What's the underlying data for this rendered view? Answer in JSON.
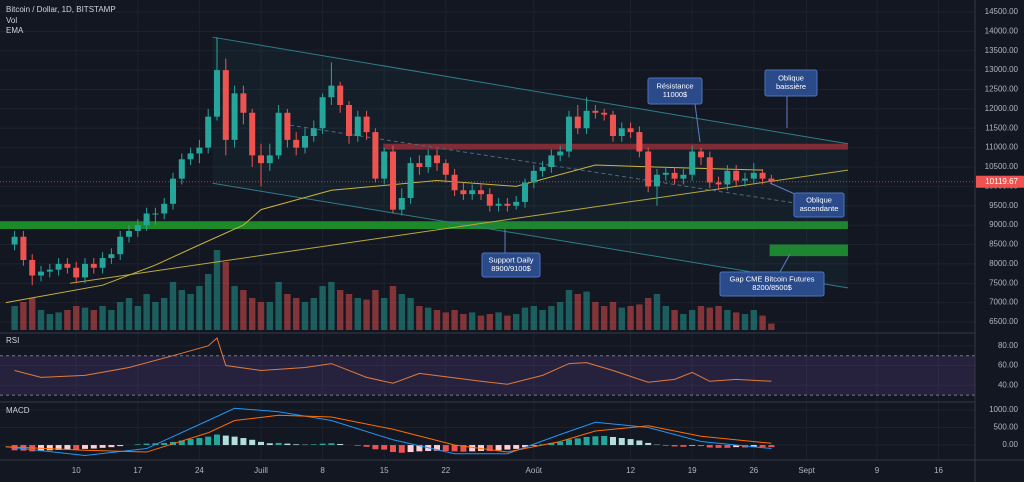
{
  "chart_data": {
    "type": "candlestick",
    "title": "Bitcoin / Dollar, 1D, BITSTAMP",
    "indicator_labels": [
      "Vol",
      "EMA"
    ],
    "x": [
      2,
      3,
      4,
      5,
      6,
      7,
      8,
      9,
      10,
      11,
      12,
      13,
      14,
      15,
      16,
      17,
      18,
      19,
      20,
      21,
      22,
      23,
      24,
      25,
      26,
      27,
      28,
      29,
      30,
      31,
      32,
      33,
      34,
      35,
      36,
      37,
      38,
      39,
      40,
      41,
      42,
      43,
      44,
      45,
      46,
      47,
      48,
      49,
      50,
      51,
      52,
      53,
      54,
      55,
      56,
      57,
      58,
      59,
      60,
      61,
      62,
      63,
      64,
      65,
      66,
      67,
      68,
      69,
      70,
      71,
      72,
      73,
      74,
      75,
      76,
      77,
      78,
      79,
      80,
      81,
      82,
      83,
      84,
      85,
      86,
      87,
      88
    ],
    "open": [
      8500,
      8700,
      8100,
      7700,
      7800,
      7850,
      8000,
      7900,
      7650,
      8000,
      7900,
      8150,
      8250,
      8700,
      8850,
      9000,
      9300,
      9300,
      9550,
      10200,
      10700,
      10850,
      11000,
      11800,
      13000,
      11200,
      12400,
      11900,
      10800,
      10600,
      10800,
      11900,
      11200,
      11000,
      11300,
      11500,
      12300,
      12600,
      12100,
      11300,
      11800,
      11400,
      10200,
      10900,
      9400,
      9700,
      10600,
      10500,
      10800,
      10600,
      10300,
      9900,
      9800,
      9900,
      9800,
      9500,
      9550,
      9500,
      9600,
      10100,
      10400,
      10500,
      10800,
      10900,
      11800,
      11500,
      11950,
      11900,
      11850,
      11300,
      11500,
      11400,
      10900,
      10000,
      10300,
      10350,
      10200,
      10300,
      10900,
      10750,
      10100,
      10050,
      10400,
      10150,
      10200,
      10350,
      10200
    ],
    "high": [
      8850,
      8850,
      8250,
      7950,
      8000,
      8150,
      8150,
      8050,
      8150,
      8150,
      8300,
      8400,
      8850,
      9000,
      9150,
      9450,
      9450,
      9700,
      10350,
      10850,
      11000,
      11200,
      12000,
      13850,
      13300,
      12600,
      12600,
      12000,
      11100,
      11100,
      12100,
      12000,
      11400,
      11500,
      11700,
      12400,
      13200,
      12700,
      12200,
      11950,
      11950,
      11500,
      11000,
      11050,
      9950,
      10750,
      10800,
      10950,
      10950,
      10700,
      10450,
      10100,
      10050,
      10050,
      9950,
      9700,
      9700,
      9750,
      10200,
      10550,
      10650,
      10950,
      11050,
      11950,
      12100,
      12300,
      12100,
      12000,
      11950,
      11650,
      11650,
      11550,
      11000,
      10450,
      10500,
      10500,
      10450,
      11050,
      11000,
      10900,
      10250,
      10550,
      10550,
      10350,
      10600,
      10450,
      10300
    ],
    "low": [
      8350,
      7950,
      7450,
      7550,
      7650,
      7700,
      7750,
      7500,
      7500,
      7750,
      7750,
      8000,
      8100,
      8550,
      8700,
      8850,
      9000,
      9150,
      9400,
      10050,
      10550,
      10600,
      10850,
      11700,
      10800,
      11000,
      11600,
      10500,
      10000,
      10400,
      10700,
      11000,
      10800,
      10850,
      11150,
      11350,
      12100,
      11900,
      11100,
      11150,
      11200,
      10100,
      10050,
      9300,
      9250,
      9550,
      10300,
      10350,
      10400,
      10100,
      9750,
      9650,
      9650,
      9650,
      9350,
      9350,
      9350,
      9400,
      9450,
      9950,
      10250,
      10350,
      10650,
      10750,
      11350,
      11350,
      11750,
      11700,
      11150,
      11150,
      11250,
      10750,
      9850,
      9500,
      10150,
      10050,
      10050,
      10150,
      10550,
      9950,
      9900,
      9900,
      10000,
      10000,
      10050,
      10050,
      10050
    ],
    "close": [
      8700,
      8100,
      7700,
      7800,
      7850,
      8000,
      7900,
      7650,
      8000,
      7900,
      8150,
      8250,
      8700,
      8850,
      9000,
      9300,
      9300,
      9550,
      10200,
      10700,
      10850,
      11000,
      11800,
      13000,
      11200,
      12400,
      11900,
      10800,
      10600,
      10800,
      11900,
      11200,
      11000,
      11300,
      11500,
      12300,
      12600,
      12100,
      11300,
      11800,
      11400,
      10200,
      10900,
      9400,
      9700,
      10600,
      10500,
      10800,
      10600,
      10300,
      9900,
      9800,
      9900,
      9800,
      9500,
      9550,
      9500,
      9600,
      10100,
      10400,
      10500,
      10800,
      10900,
      11800,
      11500,
      11950,
      11900,
      11850,
      11300,
      11500,
      11400,
      10900,
      10000,
      10300,
      10350,
      10200,
      10300,
      10900,
      10750,
      10100,
      10050,
      10400,
      10150,
      10200,
      10350,
      10200,
      10120
    ],
    "volume": [
      30,
      35,
      40,
      25,
      20,
      22,
      25,
      30,
      28,
      25,
      30,
      25,
      35,
      40,
      30,
      45,
      35,
      40,
      60,
      50,
      45,
      55,
      70,
      100,
      85,
      55,
      50,
      40,
      35,
      35,
      60,
      45,
      40,
      35,
      40,
      55,
      60,
      50,
      45,
      40,
      38,
      50,
      40,
      55,
      45,
      40,
      30,
      28,
      25,
      22,
      25,
      20,
      22,
      18,
      20,
      22,
      18,
      20,
      28,
      30,
      25,
      30,
      35,
      50,
      45,
      48,
      35,
      30,
      35,
      28,
      30,
      32,
      40,
      45,
      30,
      25,
      20,
      25,
      30,
      28,
      30,
      25,
      22,
      20,
      25,
      18,
      8
    ],
    "up_color": "#26a69a",
    "down_color": "#ef5350",
    "xlim": [
      0.34,
      111.14
    ],
    "xticks": [
      {
        "value": 9,
        "label": "10"
      },
      {
        "value": 16,
        "label": "17"
      },
      {
        "value": 23,
        "label": "24"
      },
      {
        "value": 30,
        "label": "Juill"
      },
      {
        "value": 37,
        "label": "8"
      },
      {
        "value": 44,
        "label": "15"
      },
      {
        "value": 51,
        "label": "22"
      },
      {
        "value": 61,
        "label": "Août"
      },
      {
        "value": 72,
        "label": "12"
      },
      {
        "value": 79,
        "label": "19"
      },
      {
        "value": 86,
        "label": "26"
      },
      {
        "value": 92,
        "label": "Sept"
      },
      {
        "value": 100,
        "label": "9"
      },
      {
        "value": 107,
        "label": "16"
      }
    ],
    "ylim": [
      6500,
      14500
    ],
    "yticks": [
      {
        "value": 6500,
        "label": "6500.00"
      },
      {
        "value": 7000,
        "label": "7000.00"
      },
      {
        "value": 7500,
        "label": "7500.00"
      },
      {
        "value": 8000,
        "label": "8000.00"
      },
      {
        "value": 8500,
        "label": "8500.00"
      },
      {
        "value": 9000,
        "label": "9000.00"
      },
      {
        "value": 9500,
        "label": "9500.00"
      },
      {
        "value": 10000,
        "label": "10000.00"
      },
      {
        "value": 10500,
        "label": "10500.00"
      },
      {
        "value": 11000,
        "label": "11000.00"
      },
      {
        "value": 11500,
        "label": "11500.00"
      },
      {
        "value": 12000,
        "label": "12000.00"
      },
      {
        "value": 12500,
        "label": "12500.00"
      },
      {
        "value": 13000,
        "label": "13000.00"
      },
      {
        "value": 13500,
        "label": "13500.00"
      },
      {
        "value": 14000,
        "label": "14000.00"
      },
      {
        "value": 14500,
        "label": "14500.00"
      }
    ],
    "grid": true,
    "last_price": 10119.67,
    "ema": {
      "color": "#c9b53a",
      "x": [
        1,
        12,
        18,
        23,
        28,
        30,
        38,
        50,
        59,
        68,
        79,
        87
      ],
      "values": [
        7000,
        7450,
        7970,
        8490,
        9000,
        9400,
        9900,
        10150,
        10000,
        10550,
        10470,
        10420
      ]
    },
    "drawings": {
      "lines": [
        {
          "x": [
            24.5,
            96.7
          ],
          "y": [
            13850,
            11100
          ],
          "color": "#2f7d86",
          "dash": false
        },
        {
          "x": [
            24.5,
            96.7
          ],
          "y": [
            10080,
            7380
          ],
          "color": "#2f7d86",
          "dash": false
        },
        {
          "x": [
            8.3,
            96.7
          ],
          "y": [
            7500,
            10420
          ],
          "color": "#b9a93a",
          "dash": false
        },
        {
          "x": [
            33.3,
            95.8
          ],
          "y": [
            11580,
            9390
          ],
          "color": "#4a6a80",
          "dash": true
        }
      ],
      "zones": [
        {
          "x": [
            43.9,
            96.7
          ],
          "y": [
            10950,
            11100
          ],
          "color": "#8b2530"
        },
        {
          "x": [
            0.34,
            96.7
          ],
          "y": [
            8900,
            9100
          ],
          "color": "#1d8a2a"
        },
        {
          "x": [
            87.8,
            96.7
          ],
          "y": [
            8200,
            8500
          ],
          "color": "#1d8a2a"
        }
      ],
      "callouts": [
        {
          "lines": [
            "Résistance",
            "11000$"
          ]
        },
        {
          "lines": [
            "Oblique",
            "baissière"
          ]
        },
        {
          "lines": [
            "Oblique",
            "ascendante"
          ]
        },
        {
          "lines": [
            "Support Daily",
            "8900/9100$"
          ]
        },
        {
          "lines": [
            "Gap CME Bitcoin Futures",
            "8200/8500$"
          ]
        }
      ]
    },
    "rsi": {
      "title": "RSI",
      "ylim": [
        25,
        89
      ],
      "yticks": [
        {
          "value": 40,
          "label": "40.00"
        },
        {
          "value": 60,
          "label": "60.00"
        },
        {
          "value": 80,
          "label": "80.00"
        }
      ],
      "bands": [
        30,
        70
      ],
      "color": "#e07a3c",
      "x": [
        2,
        5,
        10,
        15,
        20,
        24,
        25,
        26,
        30,
        35,
        38,
        42,
        45,
        48,
        55,
        58,
        62,
        65,
        67,
        70,
        74,
        77,
        79,
        81,
        84,
        88
      ],
      "values": [
        55,
        48,
        50,
        58,
        70,
        80,
        88,
        60,
        55,
        58,
        62,
        48,
        42,
        52,
        44,
        41,
        50,
        62,
        63,
        55,
        43,
        46,
        53,
        44,
        46,
        44
      ]
    },
    "macd": {
      "title": "MACD",
      "ylim": [
        -370,
        1200
      ],
      "yticks": [
        {
          "value": 0,
          "label": "0.00"
        },
        {
          "value": 500,
          "label": "500.00"
        },
        {
          "value": 1000,
          "label": "1000.00"
        }
      ],
      "histogram": [
        -150,
        -160,
        -180,
        -170,
        -150,
        -140,
        -130,
        -130,
        -110,
        -100,
        -80,
        -60,
        -30,
        0,
        20,
        40,
        50,
        60,
        90,
        130,
        170,
        200,
        240,
        300,
        270,
        240,
        200,
        150,
        90,
        50,
        60,
        40,
        20,
        10,
        20,
        40,
        50,
        30,
        0,
        -20,
        -50,
        -120,
        -130,
        -200,
        -220,
        -200,
        -180,
        -170,
        -160,
        -170,
        -180,
        -190,
        -180,
        -170,
        -170,
        -150,
        -130,
        -110,
        -60,
        -20,
        20,
        60,
        90,
        160,
        190,
        230,
        250,
        260,
        230,
        200,
        170,
        130,
        60,
        10,
        -20,
        -40,
        -50,
        -20,
        -30,
        -70,
        -80,
        -80,
        -60,
        -70,
        -60,
        -60,
        -60
      ],
      "macd": {
        "color": "#2196f3",
        "x": [
          1,
          10,
          17,
          24,
          27,
          32,
          38,
          45,
          52,
          58,
          64,
          68,
          74,
          80,
          88
        ],
        "values": [
          -50,
          -300,
          -100,
          700,
          1050,
          950,
          700,
          150,
          -250,
          -250,
          300,
          650,
          500,
          100,
          -100
        ]
      },
      "signal": {
        "color": "#ff6d00",
        "x": [
          1,
          10,
          17,
          24,
          27,
          32,
          38,
          45,
          52,
          58,
          64,
          68,
          74,
          80,
          88
        ],
        "values": [
          -50,
          -150,
          -200,
          350,
          700,
          850,
          800,
          450,
          0,
          -200,
          100,
          400,
          550,
          250,
          50
        ]
      }
    }
  }
}
